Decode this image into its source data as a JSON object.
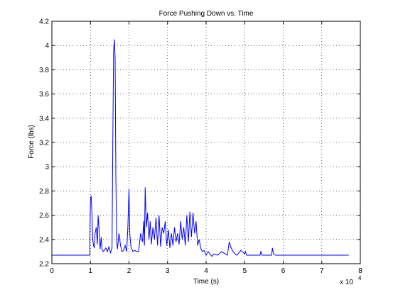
{
  "chart_data": {
    "type": "line",
    "title": "Force Pushing Down vs. Time",
    "xlabel": "Time (s)",
    "ylabel": "Force (lbs)",
    "x_multiplier_label": "x 10",
    "x_multiplier_exponent": "4",
    "xlim": [
      0,
      8
    ],
    "ylim": [
      2.2,
      4.2
    ],
    "xticks": [
      0,
      1,
      2,
      3,
      4,
      5,
      6,
      7,
      8
    ],
    "xtick_labels": [
      "0",
      "1",
      "2",
      "3",
      "4",
      "5",
      "6",
      "7",
      "8"
    ],
    "yticks": [
      2.2,
      2.4,
      2.6,
      2.8,
      3.0,
      3.2,
      3.4,
      3.6,
      3.8,
      4.0,
      4.2
    ],
    "ytick_labels": [
      "2.2",
      "2.4",
      "2.6",
      "2.8",
      "3",
      "3.2",
      "3.4",
      "3.6",
      "3.8",
      "4",
      "4.2"
    ],
    "grid": true,
    "line_color": "#0000ff",
    "series": [
      {
        "x": [
          0,
          0.5,
          0.98,
          1.0,
          1.02,
          1.04,
          1.06,
          1.08,
          1.1,
          1.12,
          1.15,
          1.18,
          1.2,
          1.22,
          1.25,
          1.28,
          1.3,
          1.33,
          1.36,
          1.4,
          1.44,
          1.48,
          1.52,
          1.56,
          1.58,
          1.6,
          1.62,
          1.64,
          1.66,
          1.68,
          1.7,
          1.74,
          1.78,
          1.82,
          1.86,
          1.9,
          1.94,
          1.97,
          2.0,
          2.02,
          2.05,
          2.1,
          2.15,
          2.2,
          2.25,
          2.3,
          2.35,
          2.38,
          2.4,
          2.42,
          2.45,
          2.48,
          2.52,
          2.55,
          2.58,
          2.62,
          2.66,
          2.7,
          2.74,
          2.78,
          2.82,
          2.86,
          2.9,
          2.94,
          2.98,
          3.02,
          3.06,
          3.1,
          3.14,
          3.18,
          3.22,
          3.26,
          3.3,
          3.34,
          3.38,
          3.42,
          3.46,
          3.5,
          3.54,
          3.58,
          3.62,
          3.66,
          3.7,
          3.74,
          3.78,
          3.82,
          3.86,
          3.9,
          3.95,
          4.0,
          4.05,
          4.1,
          4.15,
          4.2,
          4.3,
          4.4,
          4.5,
          4.55,
          4.6,
          4.65,
          4.7,
          4.75,
          4.8,
          4.9,
          5.0,
          5.02,
          5.05,
          5.2,
          5.4,
          5.42,
          5.45,
          5.6,
          5.7,
          5.72,
          5.75,
          5.8,
          6.0,
          6.5,
          7.0,
          7.5,
          7.7
        ],
        "y": [
          2.27,
          2.27,
          2.27,
          2.72,
          2.76,
          2.6,
          2.4,
          2.35,
          2.33,
          2.45,
          2.5,
          2.36,
          2.6,
          2.5,
          2.32,
          2.42,
          2.32,
          2.3,
          2.31,
          2.33,
          2.3,
          2.34,
          2.29,
          2.33,
          3.2,
          3.95,
          4.05,
          3.9,
          2.9,
          2.4,
          2.32,
          2.45,
          2.35,
          2.3,
          2.31,
          2.35,
          2.3,
          2.5,
          2.82,
          2.45,
          2.34,
          2.3,
          2.31,
          2.3,
          2.3,
          2.45,
          2.38,
          2.55,
          2.35,
          2.83,
          2.5,
          2.62,
          2.4,
          2.55,
          2.36,
          2.5,
          2.4,
          2.58,
          2.35,
          2.6,
          2.34,
          2.5,
          2.45,
          2.55,
          2.35,
          2.48,
          2.33,
          2.45,
          2.35,
          2.5,
          2.38,
          2.45,
          2.36,
          2.55,
          2.4,
          2.5,
          2.35,
          2.6,
          2.38,
          2.63,
          2.42,
          2.62,
          2.45,
          2.55,
          2.35,
          2.4,
          2.33,
          2.3,
          2.31,
          2.27,
          2.3,
          2.28,
          2.26,
          2.28,
          2.27,
          2.3,
          2.28,
          2.27,
          2.38,
          2.33,
          2.3,
          2.28,
          2.27,
          2.31,
          2.28,
          2.3,
          2.27,
          2.27,
          2.27,
          2.3,
          2.27,
          2.27,
          2.27,
          2.33,
          2.28,
          2.27,
          2.27,
          2.27,
          2.27,
          2.27,
          2.27
        ]
      }
    ]
  }
}
